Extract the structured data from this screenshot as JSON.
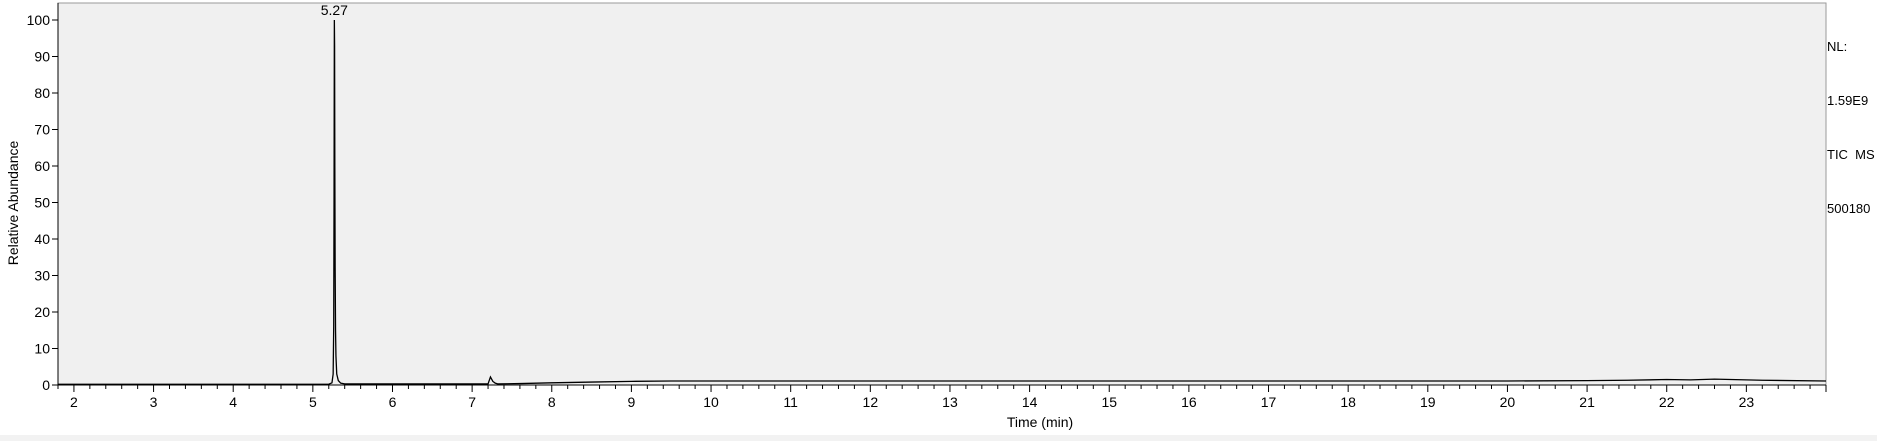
{
  "chart_data": {
    "type": "line",
    "title": "",
    "xlabel": "Time (min)",
    "ylabel": "Relative Abundance",
    "xlim": [
      1.8,
      24.0
    ],
    "ylim": [
      0,
      100
    ],
    "x_ticks": [
      2,
      3,
      4,
      5,
      6,
      7,
      8,
      9,
      10,
      11,
      12,
      13,
      14,
      15,
      16,
      17,
      18,
      19,
      20,
      21,
      22,
      23
    ],
    "y_ticks": [
      0,
      10,
      20,
      30,
      40,
      50,
      60,
      70,
      80,
      90,
      100
    ],
    "background_color": "#f0f0f0",
    "line_color": "#000000",
    "grid": false,
    "legend": "none",
    "peak_labels": [
      {
        "text": "5.27",
        "x": 5.27,
        "y": 100
      }
    ],
    "series": [
      {
        "x": [
          1.8,
          5.0,
          5.2,
          5.24,
          5.255,
          5.262,
          5.266,
          5.27,
          5.273,
          5.276,
          5.28,
          5.285,
          5.29,
          5.3,
          5.32,
          5.35,
          5.4,
          6.0,
          7.0,
          7.2,
          7.23,
          7.26,
          7.29,
          7.32,
          7.6,
          8.0,
          8.5,
          9.0,
          9.5,
          10.0,
          15.0,
          20.0,
          21.0,
          21.5,
          22.0,
          22.3,
          22.6,
          23.0,
          23.2,
          24.0
        ],
        "y": [
          0.2,
          0.2,
          0.2,
          0.6,
          3,
          16,
          50,
          100,
          93,
          60,
          32,
          15,
          8,
          3,
          1.2,
          0.5,
          0.3,
          0.3,
          0.3,
          0.3,
          2.2,
          1.0,
          0.5,
          0.3,
          0.4,
          0.6,
          0.8,
          1.0,
          1.1,
          1.1,
          1.1,
          1.1,
          1.2,
          1.3,
          1.5,
          1.4,
          1.6,
          1.4,
          1.3,
          1.1
        ]
      }
    ]
  },
  "side_info": {
    "lines": [
      "NL:",
      "1.59E9",
      "TIC  MS",
      "500180"
    ]
  }
}
